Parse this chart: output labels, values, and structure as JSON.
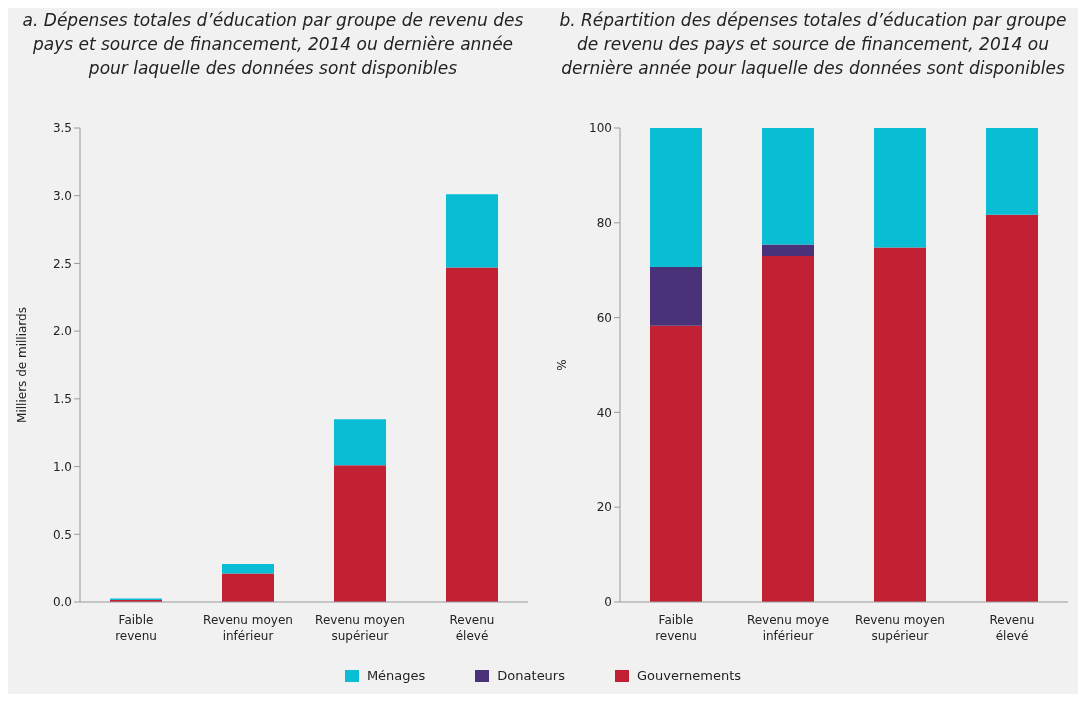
{
  "chart_data": [
    {
      "type": "bar",
      "title": "a. Dépenses totales d’éducation par groupe de revenu des pays et source de financement, 2014 ou dernière année pour laquelle des données sont disponibles",
      "ylabel": "Milliers de milliards",
      "categories": [
        "Faible\nrevenu",
        "Revenu moyen\ninférieur",
        "Revenu moyen\nsupérieur",
        "Revenu\nélevé"
      ],
      "stacked": true,
      "ylim": [
        0,
        3.5
      ],
      "yticks": [
        {
          "value": 0,
          "label": "0.0"
        },
        0.5,
        {
          "value": 1,
          "label": "1.0"
        },
        1.5,
        {
          "value": 2,
          "label": "2.0"
        },
        2.5,
        {
          "value": 3,
          "label": "3.0"
        },
        3.5
      ],
      "legend": "bottom",
      "series": [
        {
          "name": "Gouvernements",
          "color": "#c22033",
          "values": [
            0.015,
            0.21,
            1.01,
            2.47
          ]
        },
        {
          "name": "Donateurs",
          "color": "#4a3279",
          "values": [
            null,
            null,
            null,
            null
          ]
        },
        {
          "name": "Ménages",
          "color": "#08bdd4",
          "values": [
            0.01,
            0.07,
            0.34,
            0.54
          ]
        }
      ]
    },
    {
      "type": "bar",
      "title": "b. Répartition des dépenses totales d’éducation par groupe de revenu des pays et source de financement, 2014 ou dernière année pour laquelle des données sont disponibles",
      "ylabel": "%",
      "categories": [
        "Faible\nrevenu",
        "Revenu moye\ninférieur",
        "Revenu moyen\nsupérieur",
        "Revenu\nélevé"
      ],
      "stacked": true,
      "ylim": [
        0,
        100
      ],
      "yticks": [
        0,
        20,
        40,
        60,
        80,
        100
      ],
      "series": [
        {
          "color": "#c22033",
          "values": [
            58.3,
            73,
            74.8,
            81.7
          ]
        },
        {
          "color": "#4a3279",
          "values": [
            12.4,
            2.4,
            0,
            0
          ]
        },
        {
          "color": "#08bdd4",
          "values": [
            29.3,
            24.6,
            25.2,
            18.3
          ]
        }
      ]
    }
  ]
}
